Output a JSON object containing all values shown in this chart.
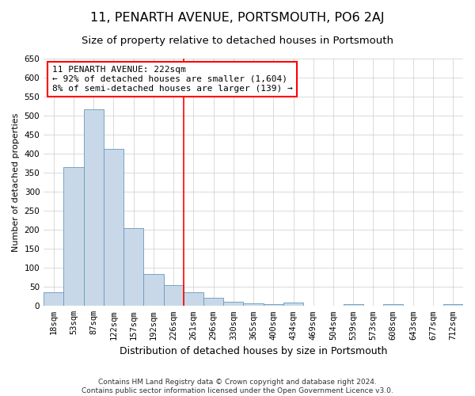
{
  "title": "11, PENARTH AVENUE, PORTSMOUTH, PO6 2AJ",
  "subtitle": "Size of property relative to detached houses in Portsmouth",
  "xlabel": "Distribution of detached houses by size in Portsmouth",
  "ylabel": "Number of detached properties",
  "categories": [
    "18sqm",
    "53sqm",
    "87sqm",
    "122sqm",
    "157sqm",
    "192sqm",
    "226sqm",
    "261sqm",
    "296sqm",
    "330sqm",
    "365sqm",
    "400sqm",
    "434sqm",
    "469sqm",
    "504sqm",
    "539sqm",
    "573sqm",
    "608sqm",
    "643sqm",
    "677sqm",
    "712sqm"
  ],
  "values": [
    37,
    365,
    517,
    412,
    205,
    83,
    55,
    35,
    22,
    11,
    7,
    4,
    9,
    0,
    0,
    4,
    0,
    4,
    0,
    0,
    4
  ],
  "bar_color": "#c8d8e8",
  "bar_edge_color": "#6699bb",
  "vline_index": 6,
  "annotation_line1": "11 PENARTH AVENUE: 222sqm",
  "annotation_line2": "← 92% of detached houses are smaller (1,604)",
  "annotation_line3": "8% of semi-detached houses are larger (139) →",
  "annotation_box_color": "white",
  "annotation_box_edge_color": "red",
  "vline_color": "red",
  "ylim": [
    0,
    650
  ],
  "yticks": [
    0,
    50,
    100,
    150,
    200,
    250,
    300,
    350,
    400,
    450,
    500,
    550,
    600,
    650
  ],
  "footer_line1": "Contains HM Land Registry data © Crown copyright and database right 2024.",
  "footer_line2": "Contains public sector information licensed under the Open Government Licence v3.0.",
  "bg_color": "white",
  "grid_color": "#cccccc",
  "title_fontsize": 11.5,
  "subtitle_fontsize": 9.5,
  "xlabel_fontsize": 9,
  "ylabel_fontsize": 8,
  "tick_fontsize": 7.5,
  "annotation_fontsize": 8,
  "footer_fontsize": 6.5
}
